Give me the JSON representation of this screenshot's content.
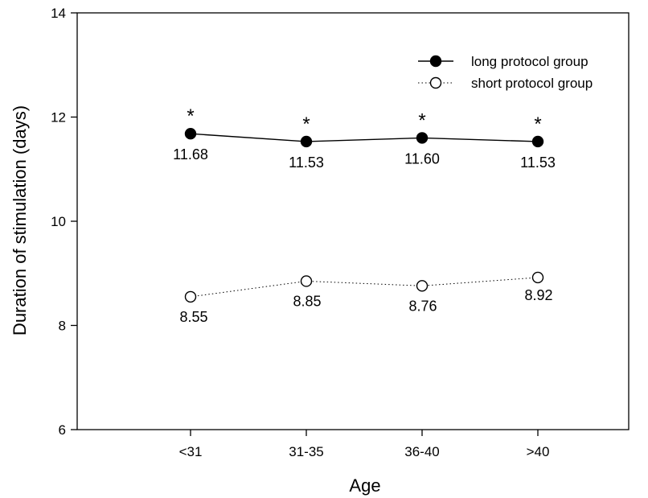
{
  "chart_data": {
    "type": "line",
    "xlabel": "Age",
    "ylabel": "Duration of stimulation (days)",
    "categories": [
      "<31",
      "31-35",
      "36-40",
      ">40"
    ],
    "ylim": [
      6,
      14
    ],
    "yticks": [
      6,
      8,
      10,
      12,
      14
    ],
    "ytick_labels": [
      "6",
      "8",
      "10",
      "12",
      "14"
    ],
    "grid": false,
    "legend_position": "top-right",
    "series": [
      {
        "name": "long protocol group",
        "values": [
          11.68,
          11.53,
          11.6,
          11.53
        ],
        "value_labels": [
          "11.68",
          "11.53",
          "11.60",
          "11.53"
        ],
        "marker": "filled-circle",
        "line_style": "solid",
        "color": "#000000",
        "significance": [
          "*",
          "*",
          "*",
          "*"
        ]
      },
      {
        "name": "short protocol group",
        "values": [
          8.55,
          8.85,
          8.76,
          8.92
        ],
        "value_labels": [
          "8.55",
          "8.85",
          "8.76",
          "8.92"
        ],
        "marker": "open-circle",
        "line_style": "dotted",
        "color": "#000000"
      }
    ]
  }
}
